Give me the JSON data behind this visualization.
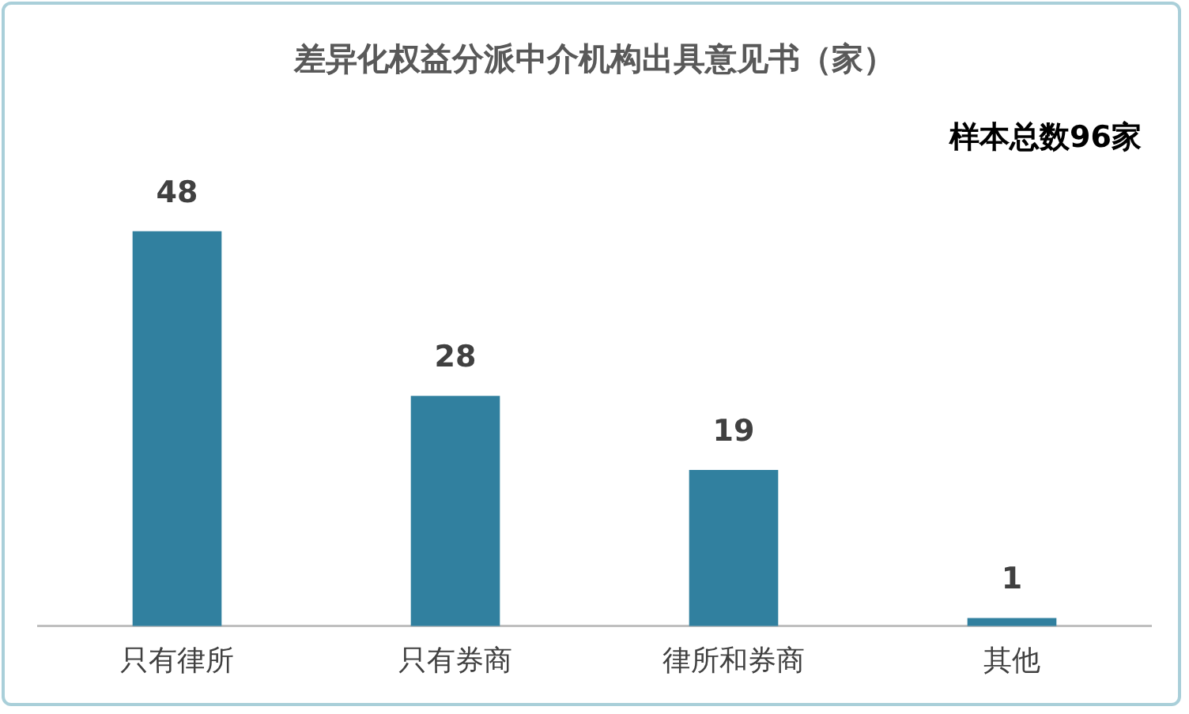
{
  "chart_data": {
    "type": "bar",
    "title": "差异化权益分派中介机构出具意见书（家）",
    "categories": [
      "只有律所",
      "只有券商",
      "律所和券商",
      "其他"
    ],
    "values": [
      48,
      28,
      19,
      1
    ],
    "color": "#31809f",
    "data_labels": true,
    "grid": false,
    "legend": false,
    "annotations": [
      "样本总数96家"
    ]
  }
}
